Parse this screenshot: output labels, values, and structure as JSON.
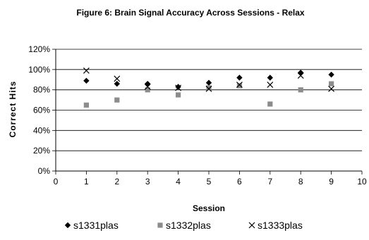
{
  "chart_data": {
    "type": "scatter",
    "title": "Figure 6: Brain Signal Accuracy Across Sessions - Relax",
    "xlabel": "Session",
    "ylabel": "Correct Hits",
    "xlim": [
      0,
      10
    ],
    "ylim": [
      0,
      120
    ],
    "x_ticks": [
      "0",
      "1",
      "2",
      "3",
      "4",
      "5",
      "6",
      "7",
      "8",
      "9",
      "10"
    ],
    "y_ticks": [
      "0%",
      "20%",
      "40%",
      "60%",
      "80%",
      "100%",
      "120%"
    ],
    "grid": "horizontal",
    "legend_position": "bottom",
    "series": [
      {
        "name": "s1331plas",
        "marker": "diamond",
        "color": "#000000",
        "x": [
          1,
          2,
          3,
          4,
          5,
          6,
          7,
          8,
          9
        ],
        "y": [
          89,
          86,
          86,
          83,
          87,
          92,
          92,
          97,
          95
        ]
      },
      {
        "name": "s1332plas",
        "marker": "square",
        "color": "#8c8c8c",
        "x": [
          1,
          2,
          3,
          4,
          5,
          6,
          7,
          8,
          9
        ],
        "y": [
          65,
          70,
          80,
          75,
          82,
          84,
          66,
          80,
          86
        ]
      },
      {
        "name": "s1333plas",
        "marker": "x",
        "color": "#000000",
        "x": [
          1,
          2,
          3,
          4,
          5,
          6,
          7,
          8,
          9
        ],
        "y": [
          99,
          91,
          83,
          82,
          81,
          85,
          85,
          94,
          81
        ]
      }
    ]
  }
}
